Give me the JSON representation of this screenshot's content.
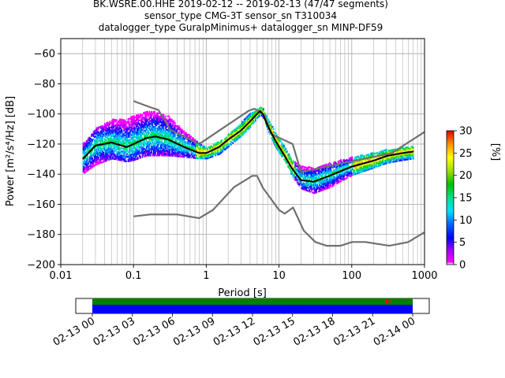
{
  "header": {
    "title_line1": "BK.WSRE.00.HHE   2019-02-12 -- 2019-02-13  (47/47 segments)",
    "title_line2": "sensor_type CMG-3T sensor_sn T310034",
    "title_line3": "datalogger_type GuralpMinimus+ datalogger_sn MINP-DF59"
  },
  "colors": {
    "model_curves": "#707070",
    "mean_curve": "#000000",
    "data_available": "#0000ff",
    "data_ok": "#008000",
    "gap": "#ff0000"
  },
  "chart_data": [
    {
      "type": "heatmap",
      "xlabel": "Period [s]",
      "ylabel": "Power [m²/s⁴/Hz] [dB]",
      "xscale": "log",
      "xlim": [
        0.01,
        1000
      ],
      "ylim": [
        -200,
        -50
      ],
      "grid": true,
      "x_ticks": [
        "0.01",
        "0.1",
        "1",
        "10",
        "100",
        "1000"
      ],
      "y_ticks": [
        "−200",
        "−180",
        "−160",
        "−140",
        "−120",
        "−100",
        "−80",
        "−60"
      ],
      "colorbar": {
        "label": "[%]",
        "range": [
          0,
          30
        ],
        "ticks": [
          "0",
          "5",
          "10",
          "15",
          "20",
          "25",
          "30"
        ]
      },
      "series": [
        {
          "role": "new_high_noise_model",
          "x": [
            0.1,
            0.17,
            0.22,
            0.32,
            0.8,
            3.8,
            4.6,
            6.3,
            7.9,
            15.4,
            20,
            354.8,
            1000
          ],
          "y": [
            -91.5,
            -95.5,
            -97.4,
            -110.5,
            -120,
            -98,
            -96.5,
            -101,
            -113.5,
            -120,
            -138.5,
            -126,
            -112
          ]
        },
        {
          "role": "new_low_noise_model",
          "x": [
            0.1,
            0.17,
            0.4,
            0.8,
            1.24,
            2.4,
            4.3,
            5,
            6,
            10,
            12,
            15.6,
            21.9,
            31.6,
            45,
            70,
            101,
            154,
            328,
            600,
            1000
          ],
          "y": [
            -168,
            -166.7,
            -166.7,
            -169.2,
            -163.7,
            -148.6,
            -141.1,
            -141.1,
            -149,
            -163.8,
            -166.2,
            -162.1,
            -177.5,
            -185,
            -187.5,
            -187.5,
            -185,
            -185,
            -187.5,
            -185,
            -178.5
          ]
        },
        {
          "role": "mean_psd",
          "x": [
            0.02,
            0.03,
            0.05,
            0.08,
            0.1,
            0.15,
            0.2,
            0.3,
            0.5,
            0.8,
            1.0,
            1.5,
            2,
            3,
            4,
            5,
            5.5,
            6,
            7,
            9,
            12,
            15,
            20,
            30,
            50,
            70,
            100,
            200,
            300,
            500,
            700
          ],
          "y": [
            -130,
            -121,
            -119,
            -122,
            -120,
            -116,
            -115,
            -117,
            -122,
            -126,
            -126,
            -122,
            -117,
            -111,
            -105,
            -100,
            -98,
            -100,
            -108,
            -118,
            -128,
            -136,
            -144,
            -145,
            -141,
            -138,
            -135,
            -131,
            -128,
            -126,
            -125
          ]
        }
      ],
      "psd_spread": {
        "x": [
          0.02,
          0.03,
          0.05,
          0.08,
          0.1,
          0.15,
          0.2,
          0.3,
          0.5,
          0.8,
          1.0,
          1.5,
          2,
          3,
          4,
          5,
          5.5,
          6,
          7,
          9,
          12,
          15,
          20,
          30,
          50,
          70,
          100,
          200,
          300,
          500,
          700
        ],
        "upper": [
          -120,
          -110,
          -104,
          -104,
          -101,
          -99,
          -99,
          -102,
          -112,
          -120,
          -123,
          -118,
          -114,
          -106,
          -100,
          -97,
          -96,
          -97,
          -104,
          -113,
          -123,
          -131,
          -135,
          -136,
          -133,
          -131,
          -129,
          -126,
          -124,
          -123,
          -121
        ],
        "lower": [
          -140,
          -134,
          -130,
          -132,
          -131,
          -128,
          -128,
          -128,
          -129,
          -130,
          -130,
          -127,
          -122,
          -115,
          -109,
          -103,
          -101,
          -103,
          -112,
          -123,
          -132,
          -142,
          -150,
          -153,
          -149,
          -145,
          -141,
          -136,
          -133,
          -131,
          -130
        ]
      }
    },
    {
      "type": "timeline",
      "x_ticks": [
        "02-13 00",
        "02-13 03",
        "02-13 06",
        "02-13 09",
        "02-13 12",
        "02-13 15",
        "02-13 18",
        "02-13 21",
        "02-14 00"
      ],
      "segments_covered_hours": [
        0,
        24
      ],
      "gap_markers_hours": [
        22.0,
        22.2
      ]
    }
  ]
}
